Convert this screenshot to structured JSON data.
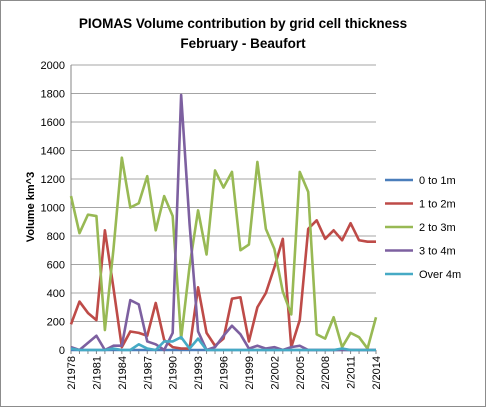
{
  "chart_data": {
    "type": "line",
    "title": "PIOMAS Volume contribution by grid cell thickness",
    "subtitle": "February  - Beaufort",
    "xlabel": "",
    "ylabel": "Volume km^3",
    "ylim": [
      0,
      2000
    ],
    "yticks": [
      0,
      200,
      400,
      600,
      800,
      1000,
      1200,
      1400,
      1600,
      1800,
      2000
    ],
    "xtick_labels": [
      "2/1978",
      "2/1981",
      "2/1984",
      "2/1987",
      "2/1990",
      "2/1993",
      "2/1996",
      "2/1999",
      "2/2002",
      "2/2005",
      "2/2008",
      "2/2011",
      "2/2014"
    ],
    "x": [
      1978,
      1979,
      1980,
      1981,
      1982,
      1983,
      1984,
      1985,
      1986,
      1987,
      1988,
      1989,
      1990,
      1991,
      1992,
      1993,
      1994,
      1995,
      1996,
      1997,
      1998,
      1999,
      2000,
      2001,
      2002,
      2003,
      2004,
      2005,
      2006,
      2007,
      2008,
      2009,
      2010,
      2011,
      2012,
      2013,
      2014
    ],
    "grid": "horizontal",
    "legend_position": "right",
    "series": [
      {
        "name": "0 to 1m",
        "color": "#4a7ebb",
        "values": [
          0,
          0,
          0,
          0,
          0,
          0,
          0,
          0,
          0,
          0,
          0,
          0,
          0,
          0,
          0,
          0,
          0,
          0,
          0,
          0,
          0,
          0,
          0,
          0,
          0,
          0,
          0,
          0,
          0,
          0,
          0,
          0,
          0,
          0,
          0,
          0,
          0
        ]
      },
      {
        "name": "1 to 2m",
        "color": "#be4b48",
        "values": [
          180,
          340,
          260,
          210,
          840,
          440,
          20,
          130,
          120,
          100,
          330,
          70,
          20,
          10,
          10,
          440,
          120,
          30,
          80,
          360,
          370,
          60,
          300,
          400,
          580,
          780,
          20,
          210,
          850,
          910,
          780,
          840,
          770,
          890,
          770,
          760,
          760
        ]
      },
      {
        "name": "2 to 3m",
        "color": "#98b954",
        "values": [
          1080,
          820,
          950,
          940,
          140,
          700,
          1350,
          1000,
          1030,
          1220,
          840,
          1080,
          940,
          80,
          590,
          980,
          670,
          1260,
          1140,
          1250,
          700,
          740,
          1320,
          850,
          710,
          410,
          250,
          1250,
          1110,
          110,
          80,
          230,
          20,
          120,
          90,
          10,
          230
        ]
      },
      {
        "name": "3 to 4m",
        "color": "#7d60a0",
        "values": [
          20,
          0,
          50,
          100,
          0,
          30,
          30,
          350,
          320,
          60,
          40,
          0,
          120,
          1790,
          880,
          130,
          0,
          20,
          100,
          170,
          110,
          10,
          30,
          10,
          20,
          0,
          20,
          30,
          0,
          0,
          0,
          0,
          0,
          0,
          0,
          0,
          0
        ]
      },
      {
        "name": "Over 4m",
        "color": "#46aac5",
        "values": [
          10,
          0,
          0,
          0,
          0,
          10,
          0,
          0,
          40,
          10,
          0,
          60,
          60,
          90,
          10,
          80,
          0,
          0,
          0,
          0,
          0,
          0,
          0,
          0,
          0,
          0,
          0,
          0,
          0,
          0,
          0,
          0,
          10,
          0,
          0,
          0,
          0
        ]
      }
    ]
  }
}
